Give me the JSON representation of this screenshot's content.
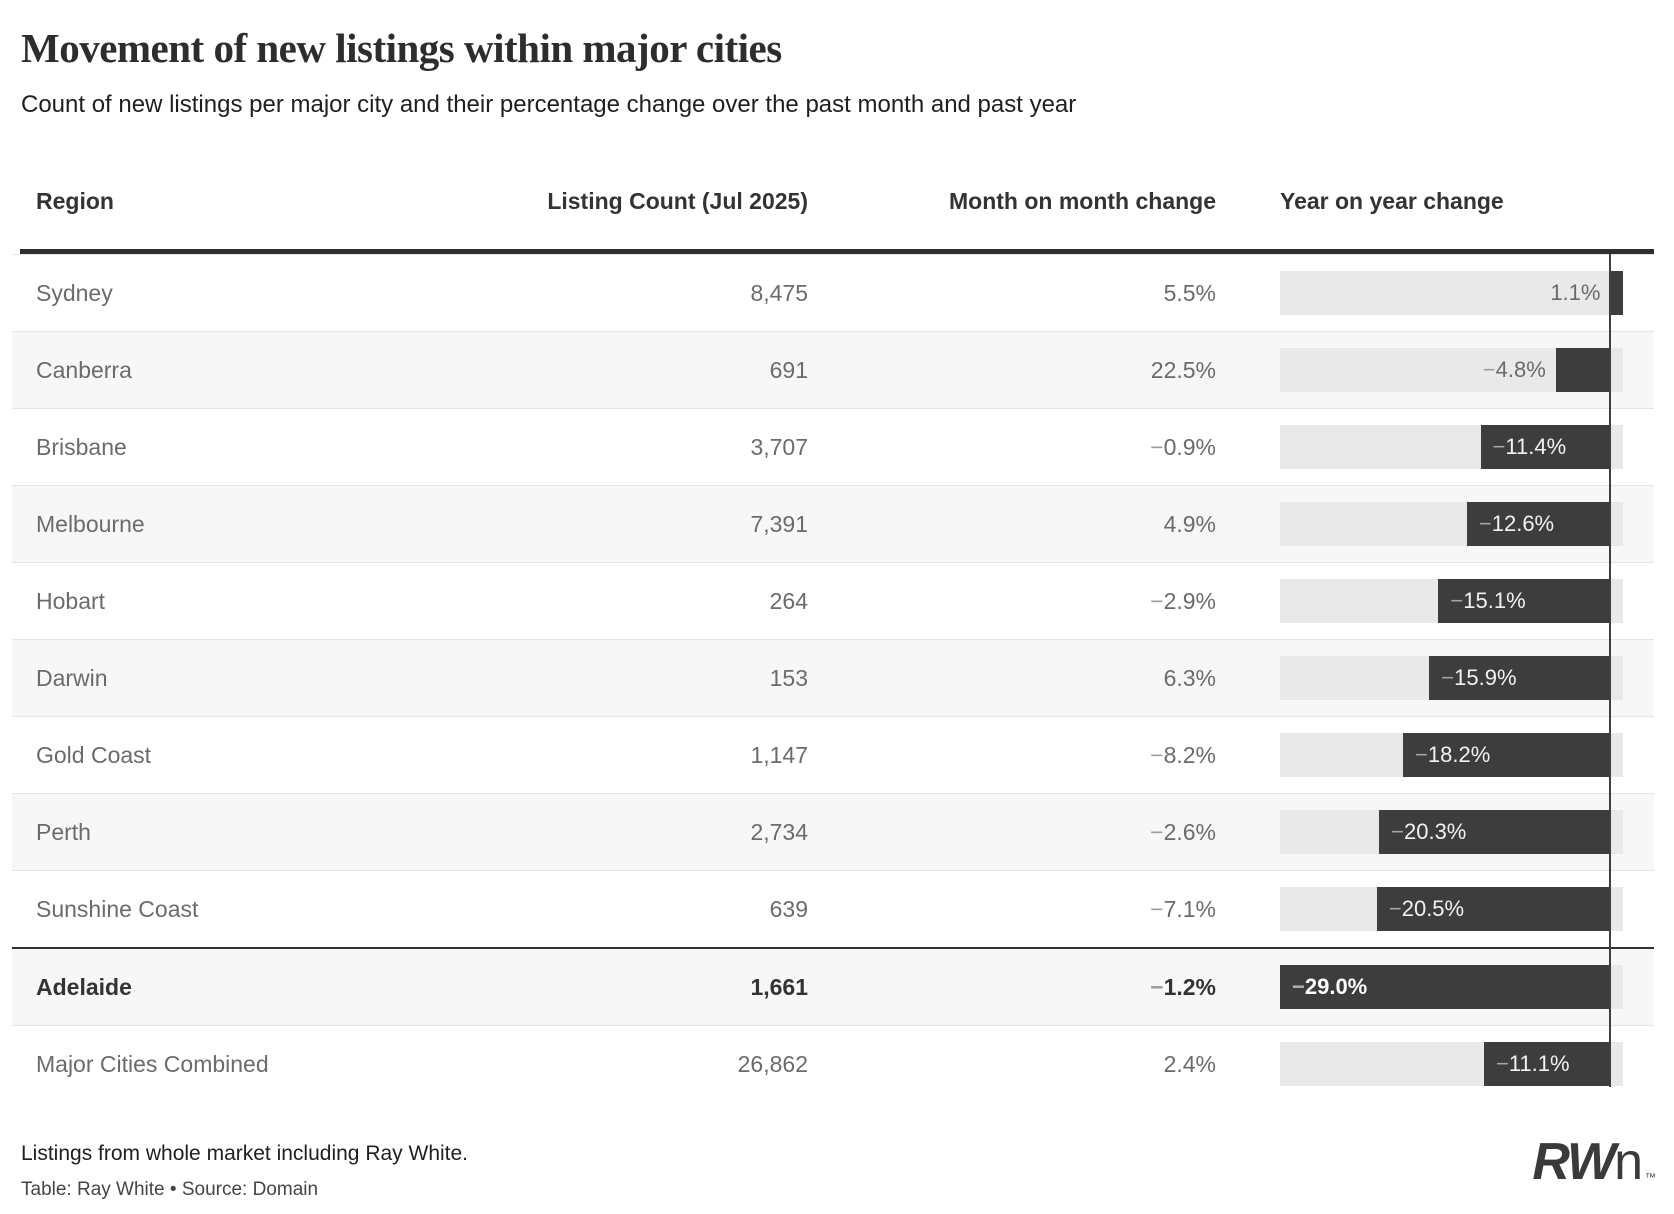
{
  "title": "Movement of new listings within major cities",
  "subtitle": "Count of new listings per major city and their percentage change over the past month and past year",
  "table": {
    "headers": {
      "region": "Region",
      "listing_count": "Listing Count (Jul 2025)",
      "mom_change": "Month on month change",
      "yoy_change": "Year on year change"
    },
    "rows": [
      {
        "region": "Sydney",
        "count": "8,475",
        "mom": "5.5%",
        "yoy_value": 1.1,
        "yoy_label": "1.1%",
        "bold": false
      },
      {
        "region": "Canberra",
        "count": "691",
        "mom": "22.5%",
        "yoy_value": -4.8,
        "yoy_label": "-4.8%",
        "bold": false
      },
      {
        "region": "Brisbane",
        "count": "3,707",
        "mom": "-0.9%",
        "yoy_value": -11.4,
        "yoy_label": "-11.4%",
        "bold": false
      },
      {
        "region": "Melbourne",
        "count": "7,391",
        "mom": "4.9%",
        "yoy_value": -12.6,
        "yoy_label": "-12.6%",
        "bold": false
      },
      {
        "region": "Hobart",
        "count": "264",
        "mom": "-2.9%",
        "yoy_value": -15.1,
        "yoy_label": "-15.1%",
        "bold": false
      },
      {
        "region": "Darwin",
        "count": "153",
        "mom": "6.3%",
        "yoy_value": -15.9,
        "yoy_label": "-15.9%",
        "bold": false
      },
      {
        "region": "Gold Coast",
        "count": "1,147",
        "mom": "-8.2%",
        "yoy_value": -18.2,
        "yoy_label": "-18.2%",
        "bold": false
      },
      {
        "region": "Perth",
        "count": "2,734",
        "mom": "-2.6%",
        "yoy_value": -20.3,
        "yoy_label": "-20.3%",
        "bold": false
      },
      {
        "region": "Sunshine Coast",
        "count": "639",
        "mom": "-7.1%",
        "yoy_value": -20.5,
        "yoy_label": "-20.5%",
        "bold": false
      },
      {
        "region": "Adelaide",
        "count": "1,661",
        "mom": "-1.2%",
        "yoy_value": -29.0,
        "yoy_label": "-29.0%",
        "bold": true
      },
      {
        "region": "Major Cities Combined",
        "count": "26,862",
        "mom": "2.4%",
        "yoy_value": -11.1,
        "yoy_label": "-11.1%",
        "bold": false
      }
    ]
  },
  "chart_data": {
    "type": "table",
    "title": "Movement of new listings within major cities",
    "subtitle": "Count of new listings per major city and their percentage change over the past month and past year",
    "columns": [
      "Region",
      "Listing Count (Jul 2025)",
      "Month on month change",
      "Year on year change"
    ],
    "regions": [
      "Sydney",
      "Canberra",
      "Brisbane",
      "Melbourne",
      "Hobart",
      "Darwin",
      "Gold Coast",
      "Perth",
      "Sunshine Coast",
      "Adelaide",
      "Major Cities Combined"
    ],
    "listing_count": [
      8475,
      691,
      3707,
      7391,
      264,
      153,
      1147,
      2734,
      639,
      1661,
      26862
    ],
    "mom_change_pct": [
      5.5,
      22.5,
      -0.9,
      4.9,
      -2.9,
      6.3,
      -8.2,
      -2.6,
      -7.1,
      -1.2,
      2.4
    ],
    "yoy_change_pct": [
      1.1,
      -4.8,
      -11.4,
      -12.6,
      -15.1,
      -15.9,
      -18.2,
      -20.3,
      -20.5,
      -29.0,
      -11.1
    ],
    "bar_column": "yoy_change_pct",
    "bar_axis_range": [
      -29.0,
      1.1
    ],
    "bar_colors": {
      "bar": "#3d3d3d",
      "track": "#e9e9e9",
      "zero_line": "#3f3f3f"
    },
    "highlighted_row": "Adelaide"
  },
  "footer": {
    "note": "Listings from whole market including Ray White.",
    "source": "Table: Ray White  •  Source: Domain"
  },
  "logo": {
    "rw": "RW",
    "n": "n",
    "tm": "™"
  }
}
